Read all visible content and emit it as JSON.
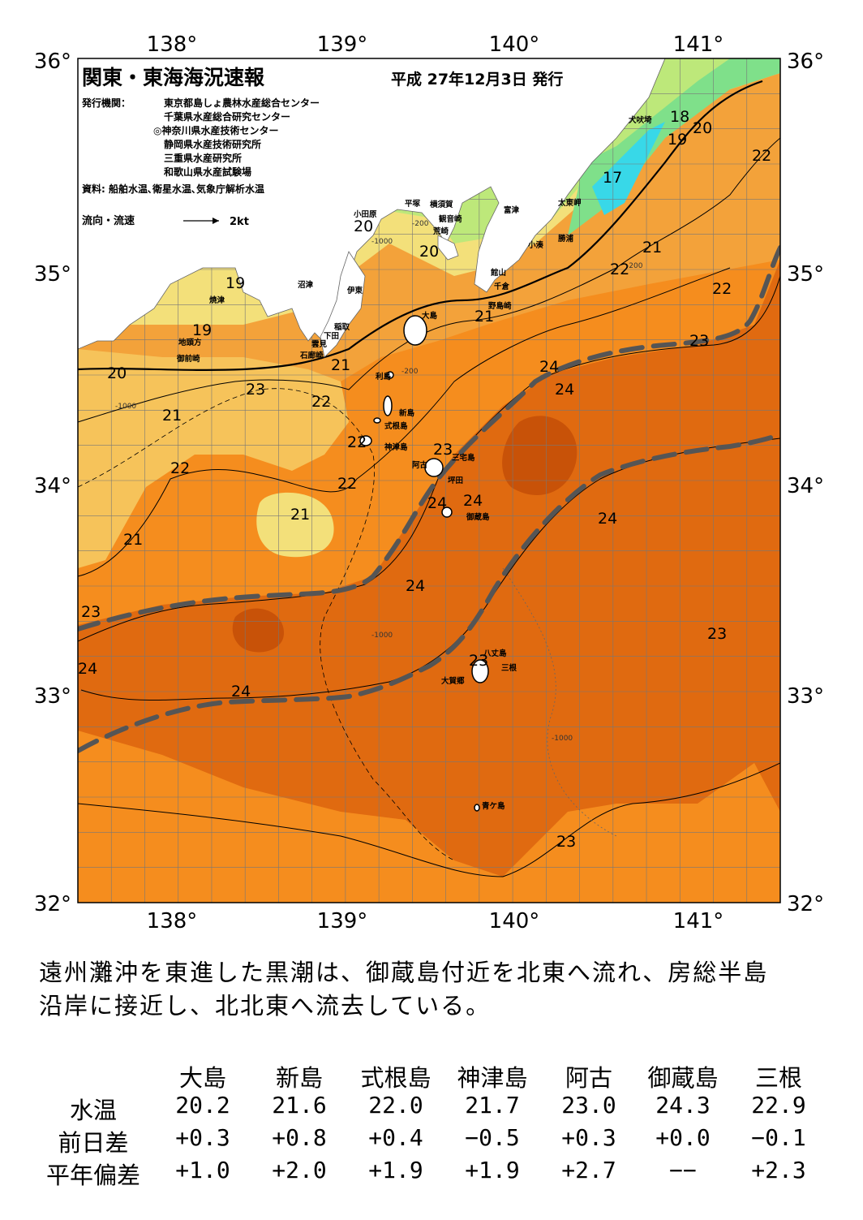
{
  "header": {
    "title": "関東・東海海況速報",
    "date": "平成 27年12月3日 発行",
    "issuer_label": "発行機関：",
    "issuers": [
      "東京都島しょ農林水産総合センター",
      "千葉県水産総合研究センター",
      "◎神奈川県水産技術センター",
      "静岡県水産技術研究所",
      "三重県水産研究所",
      "和歌山県水産試験場"
    ],
    "source": "資料: 船舶水温､衛星水温､気象庁解析水温",
    "current_legend": "流向・流速",
    "current_scale": "2kt"
  },
  "axes": {
    "lon_labels": [
      "138°",
      "139°",
      "140°",
      "141°"
    ],
    "lat_labels": [
      "36°",
      "35°",
      "34°",
      "33°",
      "32°"
    ]
  },
  "places": [
    "犬吠埼",
    "太東岬",
    "勝浦",
    "小湊",
    "富津",
    "横須賀",
    "観音崎",
    "荒崎",
    "平塚",
    "小田原",
    "館山",
    "千倉",
    "野島崎",
    "沼津",
    "伊東",
    "稲取",
    "下田",
    "雲見",
    "石廊崎",
    "焼津",
    "地頭方",
    "御前崎",
    "大島",
    "利島",
    "新島",
    "式根島",
    "神津島",
    "三宅島",
    "阿古",
    "坪田",
    "御蔵島",
    "八丈島",
    "三根",
    "大賀郷",
    "青ケ島"
  ],
  "isotherm_labels": [
    "18",
    "19",
    "20",
    "17",
    "22",
    "21",
    "22",
    "23",
    "24",
    "24",
    "24",
    "20",
    "19",
    "19",
    "20",
    "21",
    "20",
    "21",
    "22",
    "23",
    "22",
    "21",
    "22",
    "22",
    "23",
    "21",
    "22",
    "21",
    "24",
    "23",
    "24",
    "24",
    "24",
    "23",
    "24",
    "23",
    "23"
  ],
  "depth_labels": [
    "-1000",
    "-200",
    "-1000",
    "-200",
    "-1000",
    "-1000",
    "-200"
  ],
  "colors": {
    "sea_warm": "#f58d1e",
    "sea_core": "#e06a10",
    "sea_hot": "#c85208",
    "sea_mid": "#f3a23a",
    "sea_light": "#f6c35a",
    "sea_pale": "#f3e07a",
    "sea_green": "#bde87a",
    "sea_cool": "#7fe08a",
    "sea_cyan": "#38d8e8",
    "land": "#ffffff",
    "kuroshio_axis": "#555555"
  },
  "summary": [
    "遠州灘沖を東進した黒潮は、御蔵島付近を北東へ流れ、房総半島",
    "沿岸に接近し、北北東へ流去している。"
  ],
  "table": {
    "stations": [
      "大島",
      "新島",
      "式根島",
      "神津島",
      "阿古",
      "御蔵島",
      "三根"
    ],
    "rows": [
      {
        "label": "水温",
        "values": [
          "20.2",
          "21.6",
          "22.0",
          "21.7",
          "23.0",
          "24.3",
          "22.9"
        ]
      },
      {
        "label": "前日差",
        "values": [
          "+0.3",
          "+0.8",
          "+0.4",
          "−0.5",
          "+0.3",
          "+0.0",
          "−0.1"
        ]
      },
      {
        "label": "平年偏差",
        "values": [
          "+1.0",
          "+2.0",
          "+1.9",
          "+1.9",
          "+2.7",
          "−−",
          "+2.3"
        ]
      }
    ]
  }
}
